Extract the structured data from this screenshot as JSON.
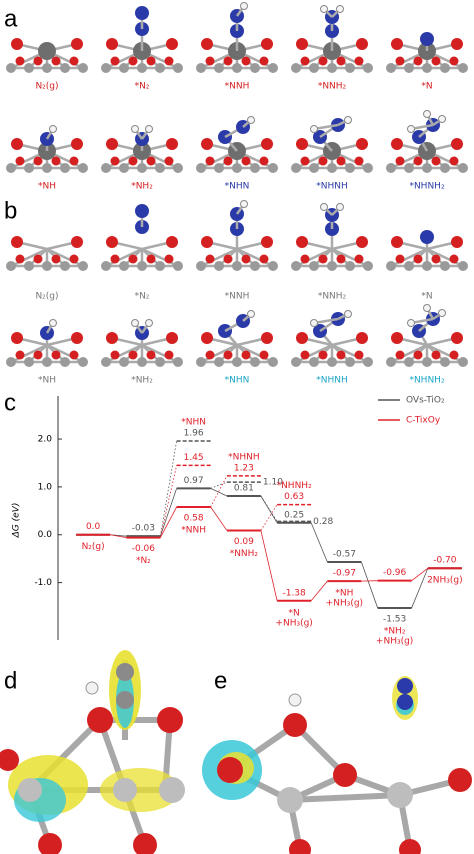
{
  "panels": {
    "a": {
      "label": "a",
      "captions": [
        "N₂(g)",
        "*N₂",
        "*NNH",
        "*NNH₂",
        "*N",
        "*NH",
        "*NH₂",
        "*NHN",
        "*NHNH",
        "*NHNH₂"
      ],
      "colors": [
        "#d42020",
        "#d42020",
        "#d42020",
        "#d42020",
        "#d42020",
        "#d42020",
        "#d42020",
        "#2a3aa8",
        "#2a3aa8",
        "#2a3aa8"
      ]
    },
    "b": {
      "label": "b",
      "captions": [
        "N₂(g)",
        "*N₂",
        "*NNH",
        "*NNH₂",
        "*N",
        "*NH",
        "*NH₂",
        "*NHN",
        "*NHNH",
        "*NHNH₂"
      ],
      "colors": [
        "#777777",
        "#777777",
        "#777777",
        "#777777",
        "#777777",
        "#777777",
        "#777777",
        "#1aa6c8",
        "#1aa6c8",
        "#1aa6c8"
      ]
    },
    "c": {
      "label": "c"
    },
    "d": {
      "label": "d"
    },
    "e": {
      "label": "e"
    }
  },
  "chart_data": {
    "type": "energy-levels",
    "ylabel": "ΔG (eV)",
    "ylim": [
      -2.2,
      2.9
    ],
    "yticks": [
      {
        "value": 2,
        "label": "2.0"
      },
      {
        "value": 1,
        "label": "1.0"
      },
      {
        "value": 0,
        "label": "0.0"
      },
      {
        "value": -1,
        "label": "-1.0"
      }
    ],
    "categories": [
      [
        "N₂(g)"
      ],
      [
        "*N₂"
      ],
      [
        "*NNH"
      ],
      [
        "*NNH₂"
      ],
      [
        "*N",
        "+NH₃(g)"
      ],
      [
        "*NH",
        "+NH₃(g)"
      ],
      [
        "*NH₂",
        "+NH₃(g)"
      ],
      [
        "2NH₃(g)"
      ]
    ],
    "category_color": "#e0202a",
    "alt_x": [
      2,
      3,
      4
    ],
    "alt_categories": [
      "*NHN",
      "*NHNH",
      "*NHNH₂"
    ],
    "legend": "upper right",
    "series": [
      {
        "name": "OVs-TiO₂",
        "color": "#555555",
        "values": [
          0,
          -0.03,
          0.97,
          0.81,
          0.25,
          -0.57,
          -1.53,
          -0.7
        ],
        "value_labels": [
          null,
          "-0.03",
          "0.97",
          "0.81",
          "0.25",
          "-0.57",
          "-1.53",
          null
        ],
        "alt_values": [
          1.96,
          1.1,
          0.28
        ],
        "alt_value_labels": [
          "1.96",
          "1.10",
          "0.28"
        ]
      },
      {
        "name": "C-TixOy",
        "color": "#e0202a",
        "values": [
          0,
          -0.06,
          0.58,
          0.09,
          -1.38,
          -0.97,
          -0.96,
          -0.7
        ],
        "value_labels": [
          "0.0",
          "-0.06",
          "0.58",
          "0.09",
          "-1.38",
          "-0.97",
          "-0.96",
          "-0.70"
        ],
        "alt_values": [
          1.45,
          1.23,
          0.63
        ],
        "alt_value_labels": [
          "1.45",
          "1.23",
          "0.63"
        ]
      }
    ]
  }
}
